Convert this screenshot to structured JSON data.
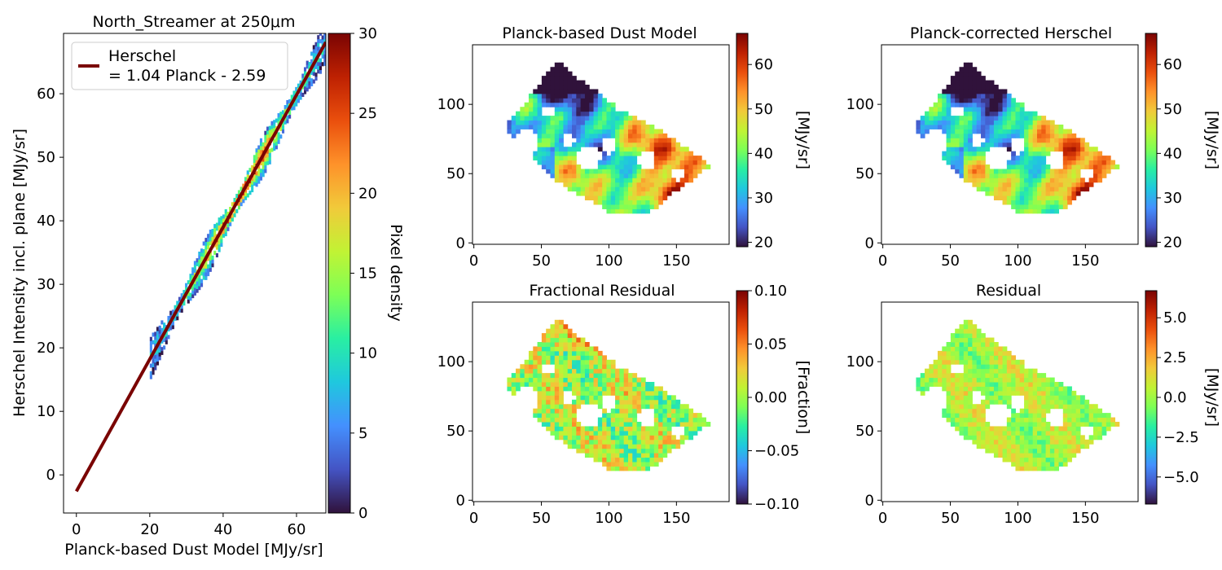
{
  "colormap": [
    "#30123b",
    "#4454c4",
    "#4490fe",
    "#1fc8de",
    "#29efa2",
    "#7dff56",
    "#c1f334",
    "#f1ca3a",
    "#fe922a",
    "#ea4f0d",
    "#be2102",
    "#7a0403"
  ],
  "chart_data": [
    {
      "id": "scatter",
      "type": "scatter",
      "title": "North_Streamer at 250μm",
      "xlabel": "Planck-based Dust Model [MJy/sr]",
      "ylabel": "Herschel Intensity incl. plane [MJy/sr]",
      "xlim": [
        -3.5,
        68
      ],
      "ylim": [
        -6,
        69.5
      ],
      "xticks": [
        "0",
        "20",
        "40",
        "60"
      ],
      "yticks": [
        "0",
        "10",
        "20",
        "30",
        "40",
        "50",
        "60"
      ],
      "legend": {
        "label_line1": "Herschel",
        "label_line2": "= 1.04 Planck - 2.59",
        "color": "#7a0403",
        "placement": "upper-left"
      },
      "fit": {
        "slope": 1.04,
        "intercept": -2.59,
        "x": [
          0,
          68
        ]
      },
      "density_x_range": [
        20,
        68
      ],
      "colorbar": {
        "label": "Pixel density",
        "range": [
          0,
          30
        ],
        "ticks": [
          "0",
          "5",
          "10",
          "15",
          "20",
          "25",
          "30"
        ]
      }
    },
    {
      "id": "model",
      "type": "heatmap",
      "title": "Planck-based Dust Model",
      "xticks": [
        "0",
        "50",
        "100",
        "150"
      ],
      "yticks": [
        "0",
        "50",
        "100"
      ],
      "colorbar": {
        "label": "[MJy/sr]",
        "range": [
          19,
          67
        ],
        "ticks": [
          "20",
          "30",
          "40",
          "50",
          "60"
        ]
      }
    },
    {
      "id": "corrected",
      "type": "heatmap",
      "title": "Planck-corrected Herschel",
      "xticks": [
        "0",
        "50",
        "100",
        "150"
      ],
      "yticks": [
        "0",
        "50",
        "100"
      ],
      "colorbar": {
        "label": "[MJy/sr]",
        "range": [
          19,
          67
        ],
        "ticks": [
          "20",
          "30",
          "40",
          "50",
          "60"
        ]
      }
    },
    {
      "id": "fracres",
      "type": "heatmap",
      "title": "Fractional Residual",
      "xticks": [
        "0",
        "50",
        "100",
        "150"
      ],
      "yticks": [
        "0",
        "50",
        "100"
      ],
      "colorbar": {
        "label": "[Fraction]",
        "range": [
          -0.1,
          0.1
        ],
        "ticks": [
          "−0.10",
          "−0.05",
          "0.00",
          "0.05",
          "0.10"
        ]
      }
    },
    {
      "id": "residual",
      "type": "heatmap",
      "title": "Residual",
      "xticks": [
        "0",
        "50",
        "100",
        "150"
      ],
      "yticks": [
        "0",
        "50",
        "100"
      ],
      "colorbar": {
        "label": "[MJy/sr]",
        "range": [
          -6.7,
          6.7
        ],
        "ticks": [
          "−5.0",
          "−2.5",
          "0.0",
          "2.5",
          "5.0"
        ]
      }
    }
  ]
}
